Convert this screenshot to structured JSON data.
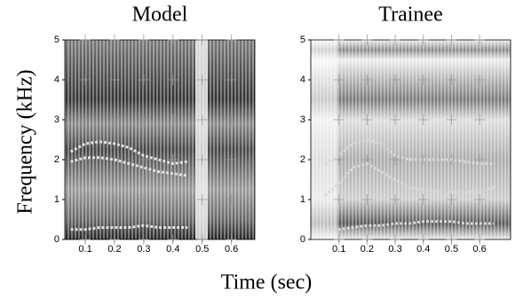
{
  "figure": {
    "x_label": "Time (sec)",
    "y_label": "Frequency (kHz)"
  },
  "chart_data": [
    {
      "type": "line",
      "title": "Model",
      "x": [
        0.05,
        0.1,
        0.15,
        0.2,
        0.25,
        0.3,
        0.35,
        0.4,
        0.45
      ],
      "series": [
        {
          "color": "#e0e0e0",
          "values": [
            0.25,
            0.25,
            0.3,
            0.3,
            0.3,
            0.35,
            0.3,
            0.3,
            0.3
          ]
        },
        {
          "color": "#e0e0e0",
          "values": [
            1.95,
            2.05,
            2.05,
            2.0,
            1.9,
            1.8,
            1.7,
            1.65,
            1.6
          ]
        },
        {
          "color": "#e0e0e0",
          "values": [
            2.2,
            2.4,
            2.45,
            2.4,
            2.3,
            2.1,
            2.0,
            1.9,
            1.95
          ]
        }
      ],
      "xlim": [
        0.03,
        0.68
      ],
      "xticks": [
        0.1,
        0.2,
        0.3,
        0.4,
        0.5,
        0.6
      ],
      "ylim": [
        0,
        5
      ],
      "yticks": [
        0,
        1,
        2,
        3,
        4,
        5
      ],
      "grid_marks": true
    },
    {
      "type": "line",
      "title": "Trainee",
      "x": [
        0.05,
        0.1,
        0.15,
        0.2,
        0.25,
        0.3,
        0.35,
        0.4,
        0.45,
        0.5,
        0.55,
        0.6,
        0.65
      ],
      "series": [
        {
          "color": "#d8d8d8",
          "values": [
            0.2,
            0.25,
            0.3,
            0.35,
            0.35,
            0.4,
            0.4,
            0.45,
            0.45,
            0.45,
            0.4,
            0.4,
            0.4
          ]
        },
        {
          "color": "#d8d8d8",
          "values": [
            1.1,
            1.4,
            1.8,
            1.9,
            1.7,
            1.5,
            1.3,
            1.25,
            1.2,
            1.2,
            1.2,
            1.2,
            1.3
          ]
        },
        {
          "color": "#d8d8d8",
          "values": [
            1.9,
            2.1,
            2.4,
            2.5,
            2.4,
            2.1,
            2.0,
            2.0,
            2.0,
            2.0,
            1.95,
            1.9,
            1.9
          ]
        }
      ],
      "xlim": [
        0,
        0.71
      ],
      "xticks": [
        0.1,
        0.2,
        0.3,
        0.4,
        0.5,
        0.6
      ],
      "ylim": [
        0,
        5
      ],
      "yticks": [
        0,
        1,
        2,
        3,
        4,
        5
      ],
      "grid_marks": true
    }
  ]
}
